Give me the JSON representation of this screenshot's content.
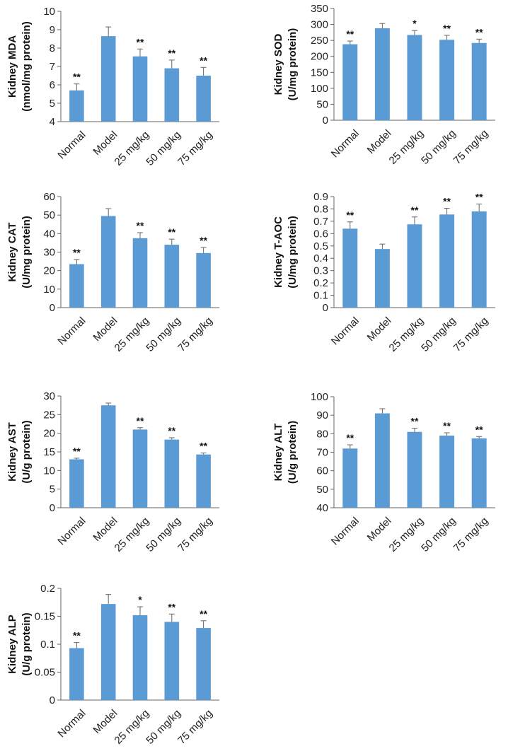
{
  "figure": {
    "colors": {
      "bar": "#5b9bd5",
      "axis": "#666666",
      "text": "#222222"
    }
  },
  "chart_data": [
    {
      "type": "bar",
      "ylabel_line1": "Kidney MDA",
      "ylabel_line2": "(nmol/mg protein)",
      "categories": [
        "Normal",
        "Model",
        "25 mg/kg",
        "50 mg/kg",
        "75 mg/kg"
      ],
      "values": [
        5.7,
        8.65,
        7.55,
        6.9,
        6.5
      ],
      "errors": [
        0.35,
        0.5,
        0.4,
        0.45,
        0.45
      ],
      "significance": [
        "**",
        "",
        "**",
        "**",
        "**"
      ],
      "ylim": [
        4,
        10
      ],
      "yticks": [
        "4",
        "5",
        "6",
        "7",
        "8",
        "9",
        "10"
      ]
    },
    {
      "type": "bar",
      "ylabel_line1": "Kidney  SOD",
      "ylabel_line2": "(U/mg protein)",
      "categories": [
        "Normal",
        "Model",
        "25 mg/kg",
        "50 mg/kg",
        "75 mg/kg"
      ],
      "values": [
        238,
        288,
        267,
        252,
        242
      ],
      "errors": [
        10,
        15,
        14,
        14,
        12
      ],
      "significance": [
        "**",
        "",
        "*",
        "**",
        "**"
      ],
      "ylim": [
        0,
        350
      ],
      "yticks": [
        "0",
        "50",
        "100",
        "150",
        "200",
        "250",
        "300",
        "350"
      ]
    },
    {
      "type": "bar",
      "ylabel_line1": "Kidney CAT",
      "ylabel_line2": "(U/mg protein)",
      "categories": [
        "Normal",
        "Model",
        "25 mg/kg",
        "50 mg/kg",
        "75 mg/kg"
      ],
      "values": [
        23.5,
        49.5,
        37.5,
        34,
        29.5
      ],
      "errors": [
        2.5,
        4,
        3,
        3,
        3
      ],
      "significance": [
        "**",
        "",
        "**",
        "**",
        "**"
      ],
      "ylim": [
        0,
        60
      ],
      "yticks": [
        "0",
        "10",
        "20",
        "30",
        "40",
        "50",
        "60"
      ]
    },
    {
      "type": "bar",
      "ylabel_line1": "Kidney  T-AOC",
      "ylabel_line2": "(U/mg protein)",
      "categories": [
        "Normal",
        "Model",
        "25 mg/kg",
        "50 mg/kg",
        "75 mg/kg"
      ],
      "values": [
        0.64,
        0.475,
        0.675,
        0.755,
        0.78
      ],
      "errors": [
        0.055,
        0.04,
        0.06,
        0.05,
        0.06
      ],
      "significance": [
        "**",
        "",
        "**",
        "**",
        "**"
      ],
      "ylim": [
        0,
        0.9
      ],
      "yticks": [
        "0",
        "0.1",
        "0.2",
        "0.3",
        "0.4",
        "0.5",
        "0.6",
        "0.7",
        "0.8",
        "0.9"
      ]
    },
    {
      "type": "bar",
      "ylabel_line1": "Kidney AST",
      "ylabel_line2": "(U/g protein)",
      "categories": [
        "Normal",
        "Model",
        "25 mg/kg",
        "50 mg/kg",
        "75 mg/kg"
      ],
      "values": [
        13,
        27.5,
        21,
        18.3,
        14.3
      ],
      "errors": [
        0.3,
        0.6,
        0.5,
        0.5,
        0.4
      ],
      "significance": [
        "**",
        "",
        "**",
        "**",
        "**"
      ],
      "ylim": [
        0,
        30
      ],
      "yticks": [
        "0",
        "5",
        "10",
        "15",
        "20",
        "25",
        "30"
      ]
    },
    {
      "type": "bar",
      "ylabel_line1": "Kidney  ALT",
      "ylabel_line2": "(U/g protein)",
      "categories": [
        "Normal",
        "Model",
        "25 mg/kg",
        "50 mg/kg",
        "75 mg/kg"
      ],
      "values": [
        72,
        91,
        81,
        79,
        77.5
      ],
      "errors": [
        2,
        2.5,
        2,
        1.5,
        1
      ],
      "significance": [
        "**",
        "",
        "**",
        "**",
        "**"
      ],
      "ylim": [
        40,
        100
      ],
      "yticks": [
        "40",
        "50",
        "60",
        "70",
        "80",
        "90",
        "100"
      ]
    },
    {
      "type": "bar",
      "ylabel_line1": "Kidney ALP",
      "ylabel_line2": "(U/g protein)",
      "categories": [
        "Normal",
        "Model",
        "25 mg/kg",
        "50 mg/kg",
        "75 mg/kg"
      ],
      "values": [
        0.093,
        0.172,
        0.152,
        0.14,
        0.129
      ],
      "errors": [
        0.01,
        0.017,
        0.015,
        0.014,
        0.013
      ],
      "significance": [
        "**",
        "",
        "*",
        "**",
        "**"
      ],
      "ylim": [
        0,
        0.2
      ],
      "yticks": [
        "0",
        "0.05",
        "0.1",
        "0.15",
        "0.2"
      ]
    }
  ]
}
